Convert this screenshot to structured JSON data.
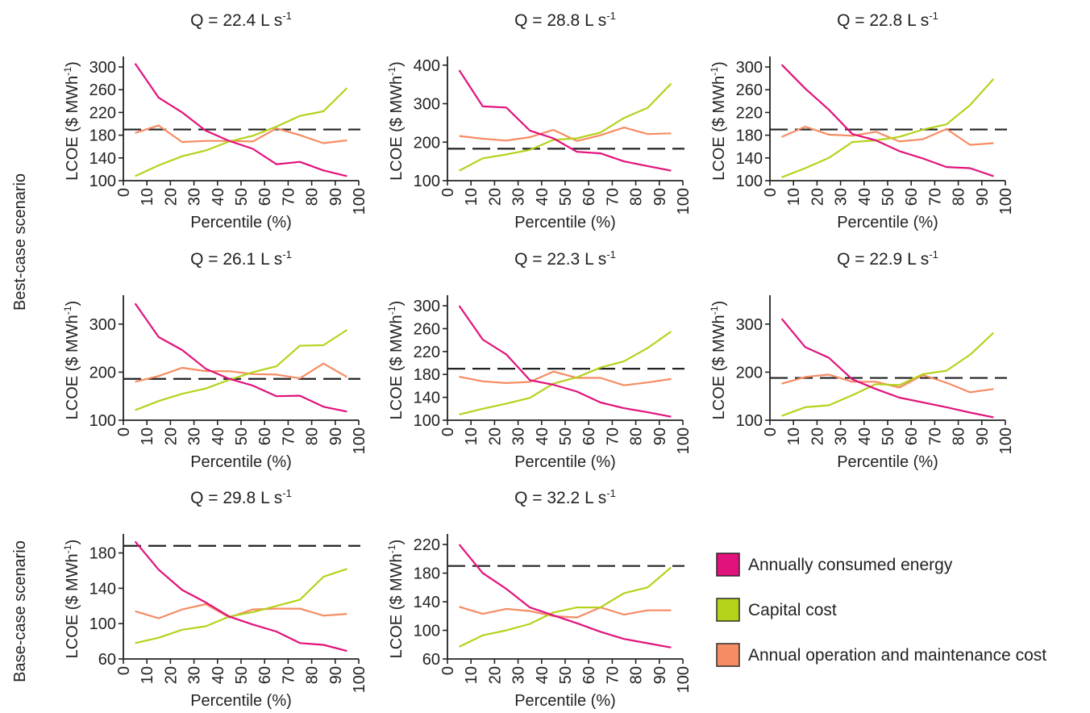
{
  "row_labels": [
    "Best-case scenario",
    "Base-case scenario"
  ],
  "legend": [
    {
      "label": "Annually consumed energy",
      "color": "#e2127c"
    },
    {
      "label": "Capital cost",
      "color": "#b5d21b"
    },
    {
      "label": "Annual operation and maintenance cost",
      "color": "#f68c63"
    }
  ],
  "chart_data": [
    {
      "type": "line",
      "scenario": "Best-case scenario",
      "title": "Q = 22.4 L s-1",
      "xlabel": "Percentile (%)",
      "ylabel": "LCOE ($ MWh-1)",
      "xlim": [
        0,
        100
      ],
      "ylim": [
        100,
        310
      ],
      "xticks": [
        0,
        10,
        20,
        30,
        40,
        50,
        60,
        70,
        80,
        90,
        100
      ],
      "yticks": [
        100,
        140,
        180,
        220,
        260,
        300
      ],
      "x": [
        5,
        15,
        25,
        35,
        45,
        55,
        65,
        75,
        85,
        95
      ],
      "reference_line": 190,
      "series": [
        {
          "name": "Annually consumed energy",
          "values": [
            306,
            246,
            220,
            188,
            170,
            156,
            129,
            133,
            118,
            108
          ]
        },
        {
          "name": "Capital cost",
          "values": [
            108,
            127,
            143,
            153,
            169,
            179,
            195,
            214,
            222,
            263
          ]
        },
        {
          "name": "Annual operation and maintenance cost",
          "values": [
            184,
            197,
            168,
            170,
            170,
            169,
            192,
            180,
            166,
            171
          ]
        }
      ]
    },
    {
      "type": "line",
      "scenario": "Best-case scenario",
      "title": "Q = 28.8 L s-1",
      "xlabel": "Percentile (%)",
      "ylabel": "LCOE ($ MWh-1)",
      "xlim": [
        0,
        100
      ],
      "ylim": [
        100,
        410
      ],
      "xticks": [
        0,
        10,
        20,
        30,
        40,
        50,
        60,
        70,
        80,
        90,
        100
      ],
      "yticks": [
        100,
        200,
        300,
        400
      ],
      "x": [
        5,
        15,
        25,
        35,
        45,
        55,
        65,
        75,
        85,
        95
      ],
      "reference_line": 183,
      "series": [
        {
          "name": "Annually consumed energy",
          "values": [
            387,
            293,
            290,
            230,
            210,
            175,
            171,
            150,
            138,
            126
          ]
        },
        {
          "name": "Capital cost",
          "values": [
            126,
            158,
            168,
            180,
            206,
            210,
            225,
            263,
            289,
            352
          ]
        },
        {
          "name": "Annual operation and maintenance cost",
          "values": [
            216,
            209,
            204,
            213,
            232,
            203,
            218,
            238,
            221,
            223
          ]
        }
      ]
    },
    {
      "type": "line",
      "scenario": "Best-case scenario",
      "title": "Q = 22.8 L s-1",
      "xlabel": "Percentile (%)",
      "ylabel": "LCOE ($ MWh-1)",
      "xlim": [
        0,
        100
      ],
      "ylim": [
        100,
        310
      ],
      "xticks": [
        0,
        10,
        20,
        30,
        40,
        50,
        60,
        70,
        80,
        90,
        100
      ],
      "yticks": [
        100,
        140,
        180,
        220,
        260,
        300
      ],
      "x": [
        5,
        15,
        25,
        35,
        45,
        55,
        65,
        75,
        85,
        95
      ],
      "reference_line": 190,
      "series": [
        {
          "name": "Annually consumed energy",
          "values": [
            304,
            262,
            225,
            182,
            171,
            152,
            139,
            124,
            122,
            108
          ]
        },
        {
          "name": "Capital cost",
          "values": [
            106,
            122,
            140,
            168,
            171,
            177,
            190,
            199,
            233,
            279
          ]
        },
        {
          "name": "Annual operation and maintenance cost",
          "values": [
            177,
            195,
            181,
            179,
            186,
            169,
            173,
            191,
            163,
            166
          ]
        }
      ]
    },
    {
      "type": "line",
      "scenario": "Best-case scenario",
      "title": "Q = 26.1 L s-1",
      "xlabel": "Percentile (%)",
      "ylabel": "LCOE ($ MWh-1)",
      "xlim": [
        0,
        100
      ],
      "ylim": [
        100,
        350
      ],
      "xticks": [
        0,
        10,
        20,
        30,
        40,
        50,
        60,
        70,
        80,
        90,
        100
      ],
      "yticks": [
        100,
        200,
        300
      ],
      "x": [
        5,
        15,
        25,
        35,
        45,
        55,
        65,
        75,
        85,
        95
      ],
      "reference_line": 186,
      "series": [
        {
          "name": "Annually consumed energy",
          "values": [
            343,
            273,
            246,
            207,
            186,
            172,
            150,
            151,
            128,
            118
          ]
        },
        {
          "name": "Capital cost",
          "values": [
            121,
            140,
            155,
            166,
            184,
            200,
            212,
            255,
            256,
            288
          ]
        },
        {
          "name": "Annual operation and maintenance cost",
          "values": [
            180,
            192,
            209,
            202,
            202,
            196,
            195,
            187,
            218,
            190
          ]
        }
      ]
    },
    {
      "type": "line",
      "scenario": "Best-case scenario",
      "title": "Q = 22.3 L s-1",
      "xlabel": "Percentile (%)",
      "ylabel": "LCOE ($ MWh-1)",
      "xlim": [
        0,
        100
      ],
      "ylim": [
        100,
        310
      ],
      "xticks": [
        0,
        10,
        20,
        30,
        40,
        50,
        60,
        70,
        80,
        90,
        100
      ],
      "yticks": [
        100,
        140,
        180,
        220,
        260,
        300
      ],
      "x": [
        5,
        15,
        25,
        35,
        45,
        55,
        65,
        75,
        85,
        95
      ],
      "reference_line": 190,
      "series": [
        {
          "name": "Annually consumed energy",
          "values": [
            300,
            241,
            215,
            170,
            162,
            150,
            131,
            121,
            114,
            106
          ]
        },
        {
          "name": "Capital cost",
          "values": [
            110,
            120,
            129,
            139,
            164,
            175,
            192,
            203,
            226,
            255
          ]
        },
        {
          "name": "Annual operation and maintenance cost",
          "values": [
            176,
            168,
            165,
            167,
            185,
            174,
            174,
            161,
            166,
            172
          ]
        }
      ]
    },
    {
      "type": "line",
      "scenario": "Best-case scenario",
      "title": "Q = 22.9 L s-1",
      "xlabel": "Percentile (%)",
      "ylabel": "LCOE ($ MWh-1)",
      "xlim": [
        0,
        100
      ],
      "ylim": [
        100,
        350
      ],
      "xticks": [
        0,
        10,
        20,
        30,
        40,
        50,
        60,
        70,
        80,
        90,
        100
      ],
      "yticks": [
        100,
        200,
        300
      ],
      "x": [
        5,
        15,
        25,
        35,
        45,
        55,
        65,
        75,
        85,
        95
      ],
      "reference_line": 188,
      "series": [
        {
          "name": "Annually consumed energy",
          "values": [
            311,
            252,
            230,
            185,
            165,
            147,
            137,
            127,
            116,
            106
          ]
        },
        {
          "name": "Capital cost",
          "values": [
            109,
            127,
            131,
            152,
            175,
            173,
            196,
            203,
            236,
            282
          ]
        },
        {
          "name": "Annual operation and maintenance cost",
          "values": [
            176,
            190,
            195,
            180,
            180,
            168,
            194,
            178,
            158,
            165
          ]
        }
      ]
    },
    {
      "type": "line",
      "scenario": "Base-case scenario",
      "title": "Q = 29.8 L s-1",
      "xlabel": "Percentile (%)",
      "ylabel": "LCOE ($ MWh-1)",
      "xlim": [
        0,
        100
      ],
      "ylim": [
        60,
        196
      ],
      "xticks": [
        0,
        10,
        20,
        30,
        40,
        50,
        60,
        70,
        80,
        90,
        100
      ],
      "yticks": [
        60,
        100,
        140,
        180
      ],
      "x": [
        5,
        15,
        25,
        35,
        45,
        55,
        65,
        75,
        85,
        95
      ],
      "reference_line": 188,
      "series": [
        {
          "name": "Annually consumed energy",
          "values": [
            193,
            161,
            138,
            124,
            108,
            99,
            91,
            78,
            76,
            69
          ]
        },
        {
          "name": "Capital cost",
          "values": [
            78,
            84,
            93,
            97,
            108,
            113,
            120,
            127,
            153,
            162
          ]
        },
        {
          "name": "Annual operation and maintenance cost",
          "values": [
            114,
            106,
            116,
            122,
            107,
            116,
            117,
            117,
            109,
            111
          ]
        }
      ]
    },
    {
      "type": "line",
      "scenario": "Base-case scenario",
      "title": "Q = 32.2 L s-1",
      "xlabel": "Percentile (%)",
      "ylabel": "LCOE ($ MWh-1)",
      "xlim": [
        0,
        100
      ],
      "ylim": [
        60,
        228
      ],
      "xticks": [
        0,
        10,
        20,
        30,
        40,
        50,
        60,
        70,
        80,
        90,
        100
      ],
      "yticks": [
        60,
        100,
        140,
        180,
        220
      ],
      "x": [
        5,
        15,
        25,
        35,
        45,
        55,
        65,
        75,
        85,
        95
      ],
      "reference_line": 190,
      "series": [
        {
          "name": "Annually consumed energy",
          "values": [
            220,
            180,
            158,
            132,
            121,
            110,
            98,
            88,
            82,
            76
          ]
        },
        {
          "name": "Capital cost",
          "values": [
            77,
            93,
            100,
            109,
            125,
            132,
            132,
            152,
            160,
            188
          ]
        },
        {
          "name": "Annual operation and maintenance cost",
          "values": [
            133,
            123,
            130,
            127,
            120,
            118,
            132,
            122,
            128,
            128
          ]
        }
      ]
    }
  ]
}
